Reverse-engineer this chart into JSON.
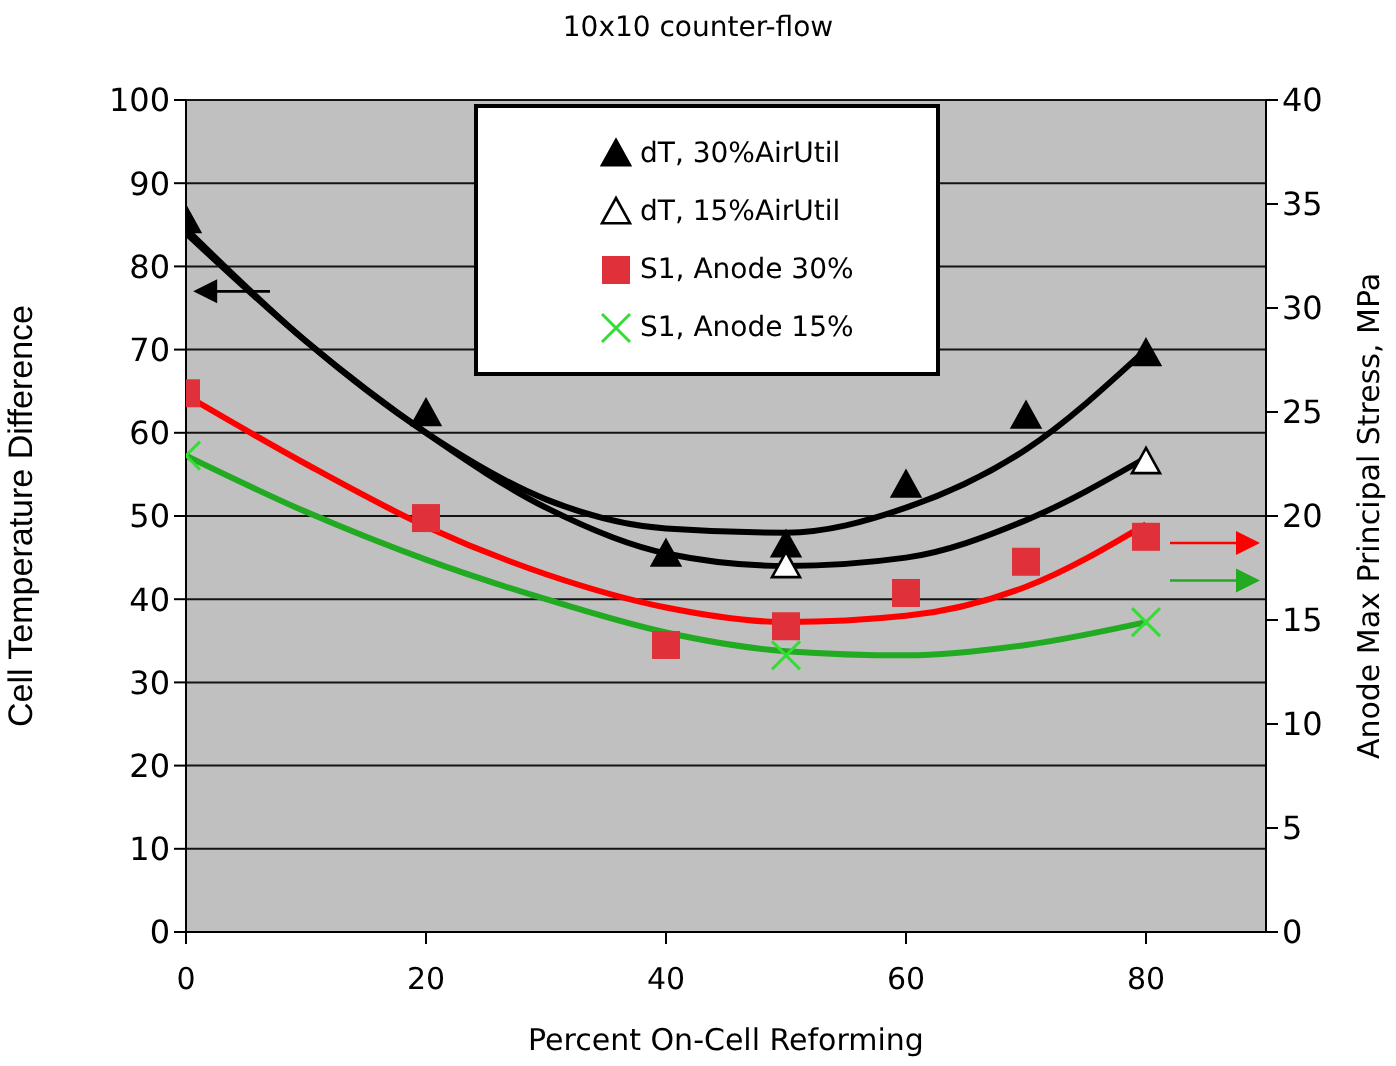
{
  "chart_data": {
    "type": "scatter",
    "title": "10x10 counter-flow",
    "xlabel": "Percent On-Cell Reforming",
    "ylabel": "Cell Temperature Difference",
    "y2label": "Anode Max Principal Stress, MPa",
    "xlim": [
      0,
      90
    ],
    "xticks": [
      0,
      20,
      40,
      60,
      80
    ],
    "ylim": [
      0,
      100
    ],
    "yticks": [
      0,
      10,
      20,
      30,
      40,
      50,
      60,
      70,
      80,
      90,
      100
    ],
    "y2lim": [
      0,
      40
    ],
    "y2ticks": [
      0,
      5,
      10,
      15,
      20,
      25,
      30,
      35,
      40
    ],
    "grid": "y",
    "legend": "top right",
    "series": [
      {
        "name": "dT, 30%AirUtil",
        "color": "#000000",
        "marker": "triangle",
        "x": [
          0,
          20,
          40,
          50,
          60,
          70,
          80
        ],
        "values": [
          85.5,
          62.3,
          45.4,
          46.5,
          53.7,
          62,
          69.5
        ]
      },
      {
        "name": "dT, 15%AirUtil",
        "color": "#000000",
        "marker": "triangle-open",
        "x": [
          50,
          80
        ],
        "values": [
          44,
          56.5
        ]
      },
      {
        "name": "S1, Anode 30%",
        "color": "#e0303a",
        "marker": "square",
        "axis": "y2",
        "x": [
          0,
          20,
          40,
          50,
          60,
          70,
          80
        ],
        "values": [
          25.9,
          19.9,
          13.8,
          14.7,
          16.3,
          17.8,
          19
        ]
      },
      {
        "name": "S1, Anode 15%",
        "color": "#33dd33",
        "marker": "cross",
        "axis": "y2",
        "x": [
          0,
          50,
          80
        ],
        "values": [
          22.9,
          13.3,
          14.9
        ]
      },
      {
        "type": "line",
        "color": "#000000",
        "x": [
          0,
          10,
          20,
          30,
          40,
          50,
          60,
          70,
          80
        ],
        "values": [
          84.5,
          71,
          60,
          52,
          48.5,
          48,
          51,
          58,
          70
        ]
      },
      {
        "type": "line",
        "color": "#000000",
        "x": [
          0,
          10,
          20,
          30,
          40,
          50,
          60,
          70,
          80
        ],
        "values": [
          84,
          71,
          60,
          51,
          45.5,
          44,
          45,
          49.5,
          57
        ]
      },
      {
        "type": "line",
        "color": "#ff0000",
        "axis": "y2",
        "x": [
          0,
          10,
          20,
          30,
          40,
          50,
          60,
          70,
          80
        ],
        "values": [
          25.8,
          22.5,
          19.5,
          17.2,
          15.6,
          14.9,
          15.2,
          16.6,
          19.6
        ]
      },
      {
        "type": "line",
        "color": "#22aa22",
        "axis": "y2",
        "x": [
          0,
          10,
          20,
          30,
          40,
          50,
          60,
          70,
          80
        ],
        "values": [
          22.9,
          20.2,
          17.9,
          16,
          14.4,
          13.5,
          13.3,
          13.8,
          14.9
        ]
      }
    ]
  }
}
